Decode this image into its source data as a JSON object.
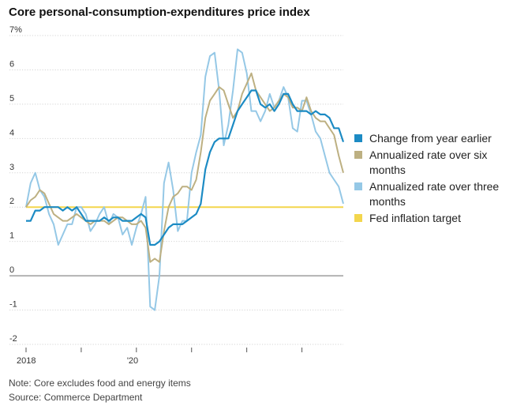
{
  "chart_data": {
    "type": "line",
    "title": "Core personal-consumption-expenditures price index",
    "y_unit": "%",
    "ylim": [
      -2,
      7
    ],
    "yticks": [
      7,
      6,
      5,
      4,
      3,
      2,
      1,
      0,
      -1,
      -2
    ],
    "ytick_labels": [
      "7%",
      "6",
      "5",
      "4",
      "3",
      "2",
      "1",
      "0",
      "-1",
      "-2"
    ],
    "xlim": [
      "2018-01",
      "2023-10"
    ],
    "xtick_labels": [
      {
        "date": "2018-01",
        "label": "2018"
      },
      {
        "date": "2020-01",
        "label": "'20"
      }
    ],
    "x_minor_ticks": [
      "2018-01",
      "2019-01",
      "2020-01",
      "2021-01",
      "2022-01",
      "2023-01"
    ],
    "grid": "horizontal",
    "legend_position": "right",
    "x_dates": [
      "2018-01",
      "2018-02",
      "2018-03",
      "2018-04",
      "2018-05",
      "2018-06",
      "2018-07",
      "2018-08",
      "2018-09",
      "2018-10",
      "2018-11",
      "2018-12",
      "2019-01",
      "2019-02",
      "2019-03",
      "2019-04",
      "2019-05",
      "2019-06",
      "2019-07",
      "2019-08",
      "2019-09",
      "2019-10",
      "2019-11",
      "2019-12",
      "2020-01",
      "2020-02",
      "2020-03",
      "2020-04",
      "2020-05",
      "2020-06",
      "2020-07",
      "2020-08",
      "2020-09",
      "2020-10",
      "2020-11",
      "2020-12",
      "2021-01",
      "2021-02",
      "2021-03",
      "2021-04",
      "2021-05",
      "2021-06",
      "2021-07",
      "2021-08",
      "2021-09",
      "2021-10",
      "2021-11",
      "2021-12",
      "2022-01",
      "2022-02",
      "2022-03",
      "2022-04",
      "2022-05",
      "2022-06",
      "2022-07",
      "2022-08",
      "2022-09",
      "2022-10",
      "2022-11",
      "2022-12",
      "2023-01",
      "2023-02",
      "2023-03",
      "2023-04",
      "2023-05",
      "2023-06",
      "2023-07",
      "2023-08",
      "2023-09",
      "2023-10"
    ],
    "series": [
      {
        "name": "Change from year earlier",
        "color": "#1c8bc4",
        "values": [
          1.6,
          1.6,
          1.9,
          1.9,
          2.0,
          2.0,
          2.0,
          2.0,
          1.9,
          2.0,
          1.9,
          2.0,
          1.8,
          1.6,
          1.6,
          1.6,
          1.6,
          1.7,
          1.6,
          1.7,
          1.7,
          1.6,
          1.6,
          1.6,
          1.7,
          1.8,
          1.7,
          0.9,
          0.9,
          1.0,
          1.2,
          1.4,
          1.5,
          1.5,
          1.5,
          1.6,
          1.7,
          1.8,
          2.1,
          3.1,
          3.6,
          3.9,
          4.0,
          4.0,
          4.0,
          4.4,
          4.8,
          5.0,
          5.2,
          5.4,
          5.4,
          5.0,
          4.9,
          5.0,
          4.8,
          5.0,
          5.3,
          5.3,
          5.0,
          4.8,
          4.8,
          4.8,
          4.7,
          4.8,
          4.7,
          4.7,
          4.6,
          4.3,
          4.3,
          3.9
        ]
      },
      {
        "name": "Annualized rate over six months",
        "color": "#bdb082",
        "values": [
          2.0,
          2.2,
          2.3,
          2.5,
          2.4,
          2.1,
          1.8,
          1.7,
          1.6,
          1.6,
          1.7,
          1.8,
          1.7,
          1.6,
          1.5,
          1.6,
          1.6,
          1.6,
          1.5,
          1.6,
          1.7,
          1.7,
          1.6,
          1.5,
          1.5,
          1.6,
          1.4,
          0.4,
          0.5,
          0.4,
          1.3,
          2.0,
          2.3,
          2.4,
          2.6,
          2.6,
          2.5,
          2.8,
          3.6,
          4.6,
          5.1,
          5.3,
          5.5,
          5.4,
          5.0,
          4.6,
          4.8,
          5.3,
          5.6,
          5.9,
          5.4,
          5.2,
          5.0,
          4.8,
          4.9,
          5.1,
          5.3,
          5.2,
          4.9,
          4.9,
          4.8,
          5.2,
          4.8,
          4.6,
          4.5,
          4.5,
          4.3,
          4.1,
          3.5,
          3.0
        ]
      },
      {
        "name": "Annualized rate over three months",
        "color": "#95c8e6",
        "values": [
          2.0,
          2.7,
          3.0,
          2.5,
          2.3,
          1.8,
          1.5,
          0.9,
          1.2,
          1.5,
          1.5,
          2.0,
          2.0,
          1.8,
          1.3,
          1.5,
          1.8,
          2.0,
          1.5,
          1.8,
          1.7,
          1.2,
          1.4,
          0.9,
          1.4,
          1.8,
          2.3,
          -0.9,
          -1.0,
          0.0,
          2.7,
          3.3,
          2.5,
          1.3,
          1.6,
          1.6,
          3.0,
          3.6,
          4.1,
          5.8,
          6.4,
          6.5,
          5.4,
          3.8,
          4.4,
          5.4,
          6.6,
          6.5,
          5.9,
          4.8,
          4.8,
          4.5,
          4.8,
          5.3,
          4.9,
          5.1,
          5.5,
          5.2,
          4.3,
          4.2,
          5.1,
          5.1,
          4.7,
          4.2,
          4.0,
          3.5,
          3.0,
          2.8,
          2.6,
          2.1
        ]
      },
      {
        "name": "Fed inflation target",
        "color": "#f3d64d",
        "values": [
          2.0,
          2.0
        ]
      }
    ],
    "legend": [
      {
        "label": "Change from year earlier",
        "color": "#1c8bc4"
      },
      {
        "label": "Annualized rate over six months",
        "color": "#bdb082"
      },
      {
        "label": "Annualized rate over three months",
        "color": "#95c8e6"
      },
      {
        "label": "Fed inflation target",
        "color": "#f3d64d"
      }
    ]
  },
  "notes": {
    "note": "Note: Core excludes food and energy items",
    "source": "Source: Commerce Department"
  }
}
